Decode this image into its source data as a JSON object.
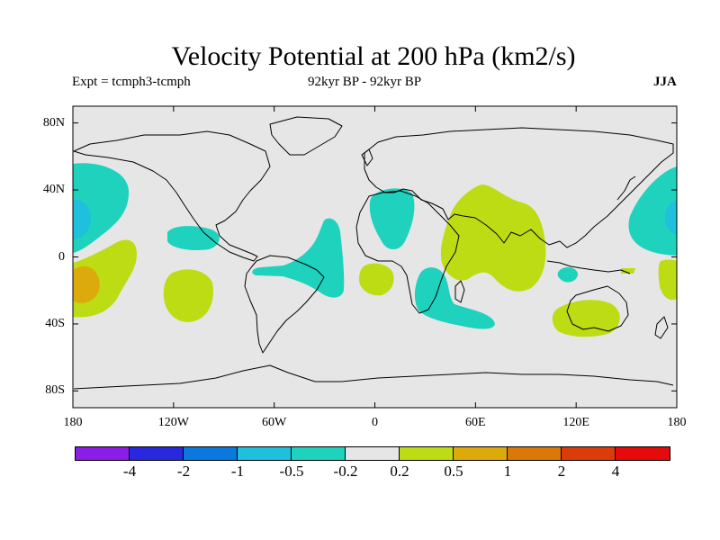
{
  "title": "Velocity Potential at 200 hPa (km2/s)",
  "subtitle_left": "Expt = tcmph3-tcmph",
  "subtitle_center": "92kyr BP - 92kyr BP",
  "subtitle_right": "JJA",
  "map_data": {
    "projection": "cylindrical equidistant",
    "lon_range": [
      -180,
      180
    ],
    "lat_range": [
      -90,
      90
    ],
    "background_color": "#e6e6e6",
    "lat_ticks": [
      {
        "value": 80,
        "label": "80N"
      },
      {
        "value": 40,
        "label": "40N"
      },
      {
        "value": 0,
        "label": "0"
      },
      {
        "value": -40,
        "label": "40S"
      },
      {
        "value": -80,
        "label": "80S"
      }
    ],
    "lon_ticks": [
      {
        "value": -180,
        "label": "180"
      },
      {
        "value": -120,
        "label": "120W"
      },
      {
        "value": -60,
        "label": "60W"
      },
      {
        "value": 0,
        "label": "0"
      },
      {
        "value": 60,
        "label": "60E"
      },
      {
        "value": 120,
        "label": "120E"
      },
      {
        "value": 180,
        "label": "180"
      }
    ]
  },
  "colorbar": {
    "colors": [
      "#8a1ee6",
      "#2828e0",
      "#0a78dc",
      "#1ec0dc",
      "#1ed2be",
      "#e6e6e6",
      "#bedc14",
      "#dcaa0a",
      "#dc780a",
      "#dc3c0a",
      "#e60a0a"
    ],
    "labels": [
      "-4",
      "-2",
      "-1",
      "-0.5",
      "-0.2",
      "0.2",
      "0.5",
      "1",
      "2",
      "4"
    ]
  },
  "contour_colors": {
    "neg_0_5": "#1ec0dc",
    "neg_0_2": "#1ed2be",
    "pos_0_2": "#bedc14",
    "pos_0_5": "#dcaa0a"
  }
}
